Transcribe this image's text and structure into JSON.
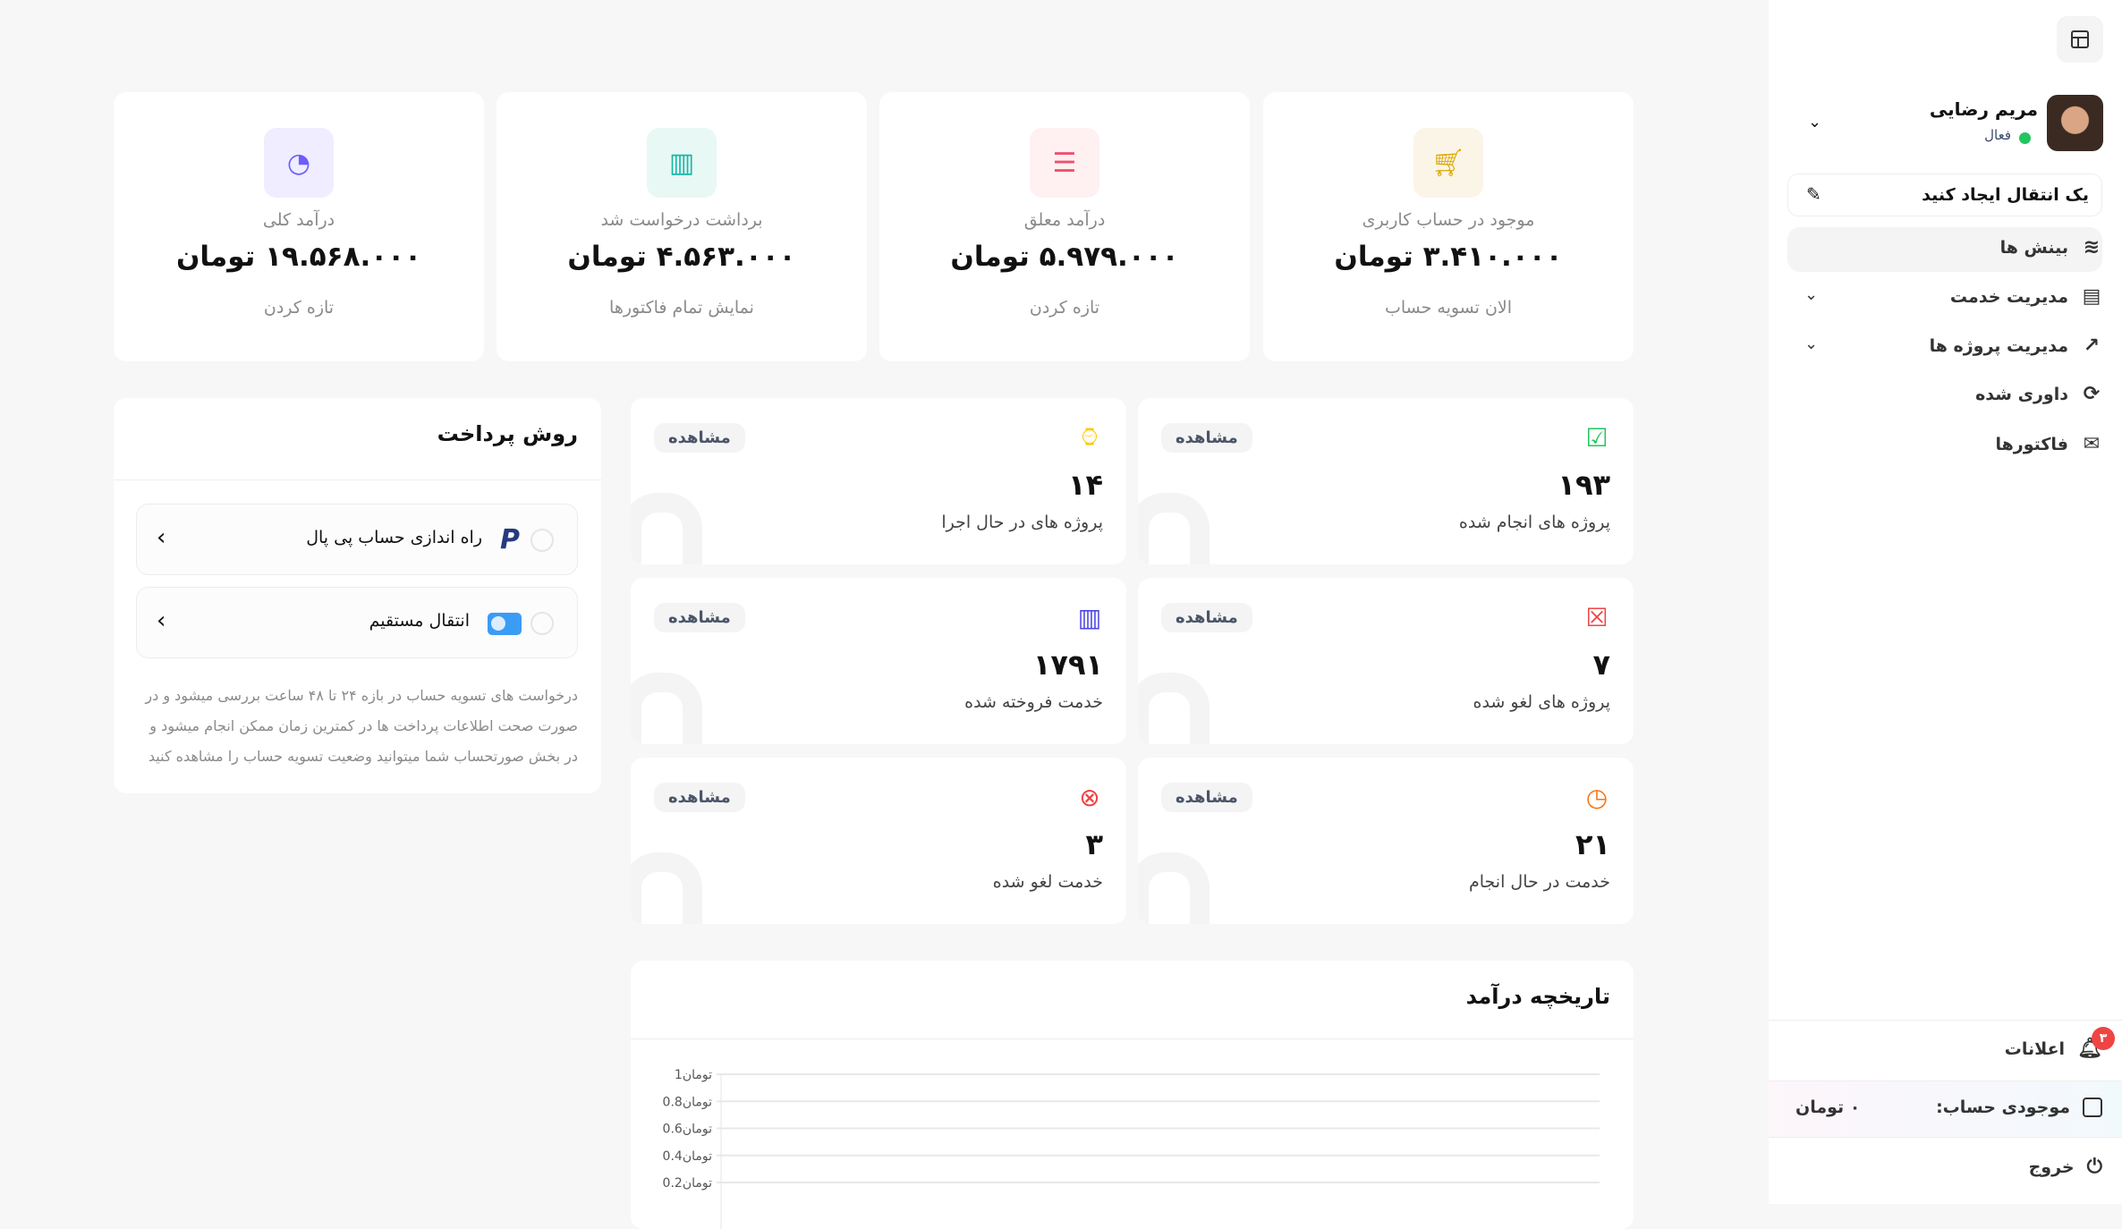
{
  "sidebar": {
    "user": {
      "name": "مریم رضایی",
      "status": "فعال"
    },
    "create_transfer": "یک انتقال ایجاد کنید",
    "items": [
      {
        "label": "بینش ها",
        "icon": "layers-icon",
        "active": true
      },
      {
        "label": "مدیریت خدمت",
        "icon": "document-icon",
        "has_submenu": true
      },
      {
        "label": "مدیریت پروژه ها",
        "icon": "external-link-icon",
        "has_submenu": true
      },
      {
        "label": "داوری شده",
        "icon": "refresh-icon"
      },
      {
        "label": "فاکتورها",
        "icon": "mail-icon"
      }
    ],
    "notifications": {
      "label": "اعلانات",
      "count": "۳"
    },
    "balance": {
      "label": "موجودی حساب:",
      "value": "۰ تومان"
    },
    "logout": "خروج"
  },
  "summary": [
    {
      "label": "موجود در حساب کاربری",
      "value": "۳.۴۱۰.۰۰۰ تومان",
      "action": "الان تسویه حساب",
      "color": "#e0a800",
      "bg": "#fbf5e8",
      "icon": "cart-icon"
    },
    {
      "label": "درآمد معلق",
      "value": "۵.۹۷۹.۰۰۰ تومان",
      "action": "تازه کردن",
      "color": "#f0506e",
      "bg": "#fff0f1",
      "icon": "server-icon"
    },
    {
      "label": "برداشت درخواست شد",
      "value": "۴.۵۶۳.۰۰۰ تومان",
      "action": "نمایش تمام فاکتورها",
      "color": "#14b8a6",
      "bg": "#e8f8f5",
      "icon": "briefcase-icon"
    },
    {
      "label": "درآمد کلی",
      "value": "۱۹.۵۶۸.۰۰۰ تومان",
      "action": "تازه کردن",
      "color": "#6d5dfc",
      "bg": "#efedff",
      "icon": "pie-chart-icon"
    }
  ],
  "stats": [
    {
      "num": "۱۹۳",
      "label": "پروژه های انجام شده",
      "view": "مشاهده",
      "color": "#22c55e",
      "icon": "check-square-icon"
    },
    {
      "num": "۱۴",
      "label": "پروژه های در حال اجرا",
      "view": "مشاهده",
      "color": "#facc15",
      "icon": "watch-icon"
    },
    {
      "num": "۷",
      "label": "پروژه های لغو شده",
      "view": "مشاهده",
      "color": "#ef4444",
      "icon": "x-square-icon"
    },
    {
      "num": "۱۷۹۱",
      "label": "خدمت فروخته شده",
      "view": "مشاهده",
      "color": "#4f46e5",
      "icon": "briefcase-icon"
    },
    {
      "num": "۲۱",
      "label": "خدمت در حال انجام",
      "view": "مشاهده",
      "color": "#f97316",
      "icon": "clock-icon"
    },
    {
      "num": "۳",
      "label": "خدمت لغو شده",
      "view": "مشاهده",
      "color": "#ef4444",
      "icon": "x-octagon-icon"
    }
  ],
  "payment": {
    "title": "روش پرداخت",
    "options": [
      {
        "label": "راه اندازی حساب پی پال",
        "icon": "paypal-icon"
      },
      {
        "label": "انتقال مستقیم",
        "icon": "card-toggle-icon"
      }
    ],
    "note": "درخواست های تسویه حساب در بازه ۲۴ تا ۴۸ ساعت بررسی میشود و در صورت صحت اطلاعات پرداخت ها در کمترین زمان ممکن انجام میشود و در بخش صورتحساب شما میتوانید وضعیت تسویه حساب را مشاهده کنید"
  },
  "chart_data": {
    "type": "line",
    "title": "تاریخچه درآمد",
    "ylim": [
      0,
      1
    ],
    "yticks": [
      1,
      0.8,
      0.6,
      0.4,
      0.2
    ],
    "ytick_labels": [
      "1تومان",
      "0.8تومان",
      "0.6تومان",
      "0.4تومان",
      "0.2تومان"
    ],
    "grid": true,
    "series": []
  }
}
